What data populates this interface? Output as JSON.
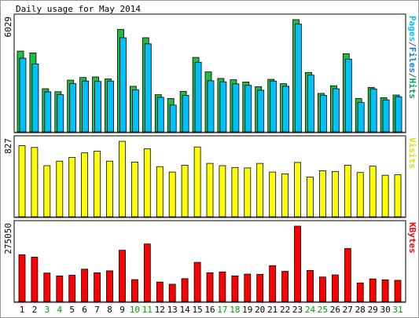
{
  "chart_data": {
    "type": "bar",
    "title": "Daily usage for May 2014",
    "categories": [
      "1",
      "2",
      "3",
      "4",
      "5",
      "6",
      "7",
      "8",
      "9",
      "10",
      "11",
      "12",
      "13",
      "14",
      "15",
      "16",
      "17",
      "18",
      "19",
      "20",
      "21",
      "22",
      "23",
      "24",
      "25",
      "26",
      "27",
      "28",
      "29",
      "30",
      "31"
    ],
    "weekend_days": [
      "3",
      "4",
      "10",
      "11",
      "17",
      "18",
      "24",
      "25",
      "31"
    ],
    "panels": [
      {
        "name": "pages-files-hits",
        "ylabel_parts": [
          {
            "text": "Pages",
            "color": "#00c0ff"
          },
          {
            "text": "/",
            "color": "#555555"
          },
          {
            "text": "Files",
            "color": "#0080ff"
          },
          {
            "text": "/",
            "color": "#555555"
          },
          {
            "text": "Hits",
            "color": "#00a060"
          }
        ],
        "max_label": "6029",
        "ymax": 6029,
        "series": [
          {
            "name": "Hits",
            "color": "#22bb44",
            "values": [
              4340,
              4240,
              2320,
              2160,
              2780,
              2920,
              2950,
              2840,
              5500,
              2450,
              5060,
              2000,
              1790,
              2180,
              4000,
              3220,
              2870,
              2800,
              2680,
              2430,
              2820,
              2590,
              6029,
              3190,
              2070,
              2480,
              4200,
              1790,
              2390,
              1840,
              1980
            ]
          },
          {
            "name": "Files",
            "color": "#00c0ff",
            "values": [
              3960,
              3650,
              2150,
              2000,
              2590,
              2730,
              2710,
              2730,
              5060,
              2260,
              4730,
              1860,
              1440,
              1960,
              3740,
              2750,
              2690,
              2580,
              2500,
              2240,
              2730,
              2450,
              5790,
              3050,
              1970,
              2320,
              3910,
              1580,
              2310,
              1720,
              1890
            ]
          }
        ]
      },
      {
        "name": "visits",
        "ylabel_parts": [
          {
            "text": "Visits",
            "color": "#dddd00"
          }
        ],
        "max_label": "827",
        "ymax": 827,
        "series": [
          {
            "name": "Visits",
            "color": "#ffff00",
            "values": [
              780,
              760,
              560,
              610,
              650,
              700,
              720,
              610,
              827,
              600,
              745,
              550,
              490,
              565,
              765,
              585,
              560,
              540,
              535,
              585,
              490,
              470,
              595,
              435,
              505,
              495,
              565,
              485,
              555,
              455,
              460
            ]
          }
        ]
      },
      {
        "name": "kbytes",
        "ylabel_parts": [
          {
            "text": "KBytes",
            "color": "#ff0000"
          }
        ],
        "max_label": "275050",
        "ymax": 275050,
        "series": [
          {
            "name": "KBytes",
            "color": "#ff0000",
            "values": [
              170500,
              162000,
              104000,
              93500,
              96000,
              118000,
              105000,
              112000,
              187000,
              80000,
              210000,
              71000,
              63000,
              83500,
              143000,
              105000,
              108000,
              93500,
              100000,
              99000,
              131000,
              110000,
              275050,
              113500,
              89500,
              97000,
              193000,
              68000,
              82500,
              79500,
              77500
            ]
          }
        ]
      }
    ]
  }
}
